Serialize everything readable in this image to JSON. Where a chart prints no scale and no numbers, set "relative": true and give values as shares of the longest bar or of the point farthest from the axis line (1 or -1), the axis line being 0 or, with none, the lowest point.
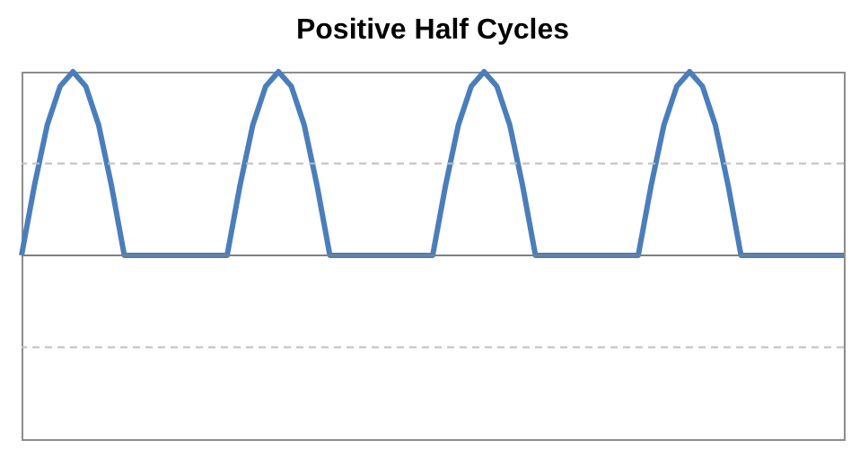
{
  "chart_data": {
    "type": "line",
    "title": "Positive Half Cycles",
    "relative": true,
    "ref_lines": [
      {
        "axis": "y",
        "value": 0.5,
        "color": "#bfbfbf",
        "line_style": "dashed"
      },
      {
        "axis": "y",
        "value": -0.5,
        "color": "#bfbfbf",
        "line_style": "dashed"
      }
    ],
    "legend": false,
    "marker": "none",
    "line_style": "solid",
    "categories": [
      null,
      null,
      null,
      null,
      null,
      null,
      null,
      null,
      null,
      null,
      null,
      null,
      null,
      null,
      null,
      null,
      null,
      null,
      null,
      null,
      null,
      null,
      null,
      null,
      null,
      null,
      null,
      null,
      null,
      null,
      null,
      null,
      null,
      null,
      null,
      null,
      null,
      null,
      null,
      null,
      null,
      null,
      null,
      null,
      null,
      null,
      null,
      null,
      null,
      null,
      null,
      null,
      null,
      null,
      null,
      null,
      null,
      null,
      null,
      null,
      null,
      null,
      null,
      null,
      null
    ],
    "series": [
      {
        "color": "#4a7ebb",
        "values": [
          0,
          0.38,
          0.71,
          0.92,
          1,
          0.92,
          0.71,
          0.38,
          0,
          0,
          0,
          0,
          0,
          0,
          0,
          0,
          0,
          0.38,
          0.71,
          0.92,
          1,
          0.92,
          0.71,
          0.38,
          0,
          0,
          0,
          0,
          0,
          0,
          0,
          0,
          0,
          0.38,
          0.71,
          0.92,
          1,
          0.92,
          0.71,
          0.38,
          0,
          0,
          0,
          0,
          0,
          0,
          0,
          0,
          0,
          0.38,
          0.71,
          0.92,
          1,
          0.92,
          0.71,
          0.38,
          0,
          0,
          0,
          0,
          0,
          0,
          0,
          0,
          0
        ]
      }
    ]
  }
}
